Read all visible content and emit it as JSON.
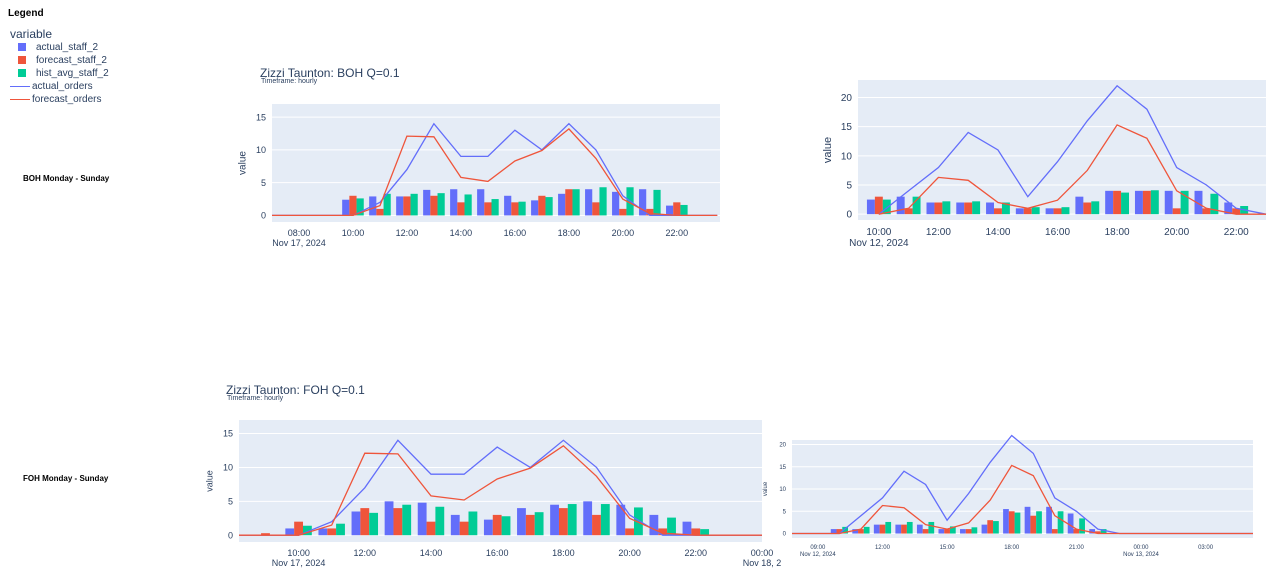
{
  "legend": {
    "heading": "Legend",
    "title": "variable",
    "items": [
      {
        "label": "actual_staff_2",
        "kind": "bar",
        "color": "#636efa"
      },
      {
        "label": "forecast_staff_2",
        "kind": "bar",
        "color": "#ef553b"
      },
      {
        "label": "hist_avg_staff_2",
        "kind": "bar",
        "color": "#00cc96"
      },
      {
        "label": "actual_orders",
        "kind": "line",
        "color": "#636efa"
      },
      {
        "label": "forecast_orders",
        "kind": "line",
        "color": "#ef553b"
      }
    ]
  },
  "rows": {
    "boh_label": "BOH Monday - Sunday",
    "foh_label": "FOH Monday - Sunday"
  },
  "colors": {
    "actual": "#636efa",
    "forecast": "#ef553b",
    "hist": "#00cc96",
    "plot_bg": "#e5ecf6",
    "grid": "#ffffff"
  },
  "chart_data": [
    {
      "id": "boh-main",
      "type": "bar",
      "title": "Zizzi Taunton: BOH Q=0.1",
      "subtitle": "Timeframe:  hourly",
      "ylabel": "value",
      "xlim": [
        7,
        23.6
      ],
      "ylim": [
        -1,
        17
      ],
      "yticks": [
        0,
        5,
        10,
        15
      ],
      "xticks": [
        {
          "x": 8,
          "label": "08:00",
          "sub": "Nov 17, 2024"
        },
        {
          "x": 10,
          "label": "10:00"
        },
        {
          "x": 12,
          "label": "12:00"
        },
        {
          "x": 14,
          "label": "14:00"
        },
        {
          "x": 16,
          "label": "16:00"
        },
        {
          "x": 18,
          "label": "18:00"
        },
        {
          "x": 20,
          "label": "20:00"
        },
        {
          "x": 22,
          "label": "22:00"
        }
      ],
      "categories": [
        10,
        11,
        12,
        13,
        14,
        15,
        16,
        17,
        18,
        19,
        20,
        21,
        22
      ],
      "series": [
        {
          "name": "actual_staff_2",
          "values": [
            2.4,
            2.9,
            2.9,
            3.9,
            4.0,
            4.0,
            3.0,
            2.3,
            3.3,
            4.0,
            3.6,
            4.0,
            1.5
          ]
        },
        {
          "name": "forecast_staff_2",
          "values": [
            3.0,
            1.0,
            2.9,
            3.0,
            2.0,
            2.0,
            2.0,
            3.0,
            4.0,
            2.0,
            1.0,
            1.0,
            2.0
          ]
        },
        {
          "name": "hist_avg_staff_2",
          "values": [
            2.6,
            3.3,
            3.3,
            3.4,
            3.2,
            2.5,
            2.1,
            2.8,
            4.0,
            4.3,
            4.3,
            3.9,
            1.6
          ]
        }
      ],
      "lines": [
        {
          "name": "actual_orders",
          "x": [
            7,
            10,
            11,
            12,
            13,
            14,
            15,
            16,
            17,
            18,
            19,
            20,
            21,
            22,
            23.5
          ],
          "y": [
            0,
            0,
            2,
            7,
            14,
            9,
            9,
            13,
            10,
            14,
            10,
            3,
            0,
            0,
            0
          ]
        },
        {
          "name": "forecast_orders",
          "x": [
            7,
            10,
            11,
            12,
            13,
            14,
            15,
            16,
            17,
            18,
            19,
            20,
            21,
            22,
            23.5
          ],
          "y": [
            0,
            0,
            1.5,
            12.1,
            12,
            5.8,
            5.2,
            8.3,
            9.9,
            13.2,
            8.7,
            2.5,
            0.3,
            0,
            0
          ]
        }
      ]
    },
    {
      "id": "boh-weekly",
      "type": "bar",
      "ylabel": "value",
      "xlim": [
        9.3,
        23
      ],
      "ylim": [
        -1,
        23
      ],
      "yticks": [
        0,
        5,
        10,
        15,
        20
      ],
      "xticks": [
        {
          "x": 10,
          "label": "10:00",
          "sub": "Nov 12, 2024"
        },
        {
          "x": 12,
          "label": "12:00"
        },
        {
          "x": 14,
          "label": "14:00"
        },
        {
          "x": 16,
          "label": "16:00"
        },
        {
          "x": 18,
          "label": "18:00"
        },
        {
          "x": 20,
          "label": "20:00"
        },
        {
          "x": 22,
          "label": "22:00"
        }
      ],
      "categories": [
        10,
        11,
        12,
        13,
        14,
        15,
        16,
        17,
        18,
        19,
        20,
        21,
        22
      ],
      "series": [
        {
          "name": "actual_staff_2",
          "values": [
            2.5,
            3.0,
            2.0,
            2.0,
            2.0,
            1.0,
            1.0,
            3.0,
            4.0,
            4.0,
            4.0,
            4.0,
            2.0
          ]
        },
        {
          "name": "forecast_staff_2",
          "values": [
            3.0,
            1.0,
            2.0,
            2.0,
            1.0,
            1.0,
            1.0,
            2.0,
            4.0,
            4.0,
            1.0,
            1.0,
            1.0
          ]
        },
        {
          "name": "hist_avg_staff_2",
          "values": [
            2.5,
            3.0,
            2.2,
            2.2,
            2.0,
            1.2,
            1.2,
            2.2,
            3.7,
            4.1,
            4.0,
            3.5,
            1.4
          ]
        }
      ],
      "lines": [
        {
          "name": "actual_orders",
          "x": [
            10,
            11,
            12,
            13,
            14,
            15,
            16,
            17,
            18,
            19,
            20,
            21,
            22,
            23
          ],
          "y": [
            0,
            4,
            8,
            14,
            11,
            3,
            9,
            16,
            22,
            18,
            8,
            5,
            1,
            0
          ]
        },
        {
          "name": "forecast_orders",
          "x": [
            10,
            11,
            12,
            13,
            14,
            15,
            16,
            17,
            18,
            19,
            20,
            21,
            22,
            23
          ],
          "y": [
            0,
            1,
            6.3,
            5.8,
            2,
            1,
            2.4,
            7.5,
            15.3,
            13,
            4,
            1,
            0,
            0
          ]
        }
      ]
    },
    {
      "id": "foh-main",
      "type": "bar",
      "title": "Zizzi Taunton: FOH Q=0.1",
      "subtitle": "Timeframe:  hourly",
      "ylabel": "value",
      "xlim": [
        8.2,
        24
      ],
      "ylim": [
        -1,
        17
      ],
      "yticks": [
        0,
        5,
        10,
        15
      ],
      "xticks": [
        {
          "x": 10,
          "label": "10:00",
          "sub": "Nov 17, 2024"
        },
        {
          "x": 12,
          "label": "12:00"
        },
        {
          "x": 14,
          "label": "14:00"
        },
        {
          "x": 16,
          "label": "16:00"
        },
        {
          "x": 18,
          "label": "18:00"
        },
        {
          "x": 20,
          "label": "20:00"
        },
        {
          "x": 22,
          "label": "22:00"
        },
        {
          "x": 24,
          "label": "00:00",
          "sub": "Nov 18, 2"
        }
      ],
      "categories": [
        9,
        10,
        11,
        12,
        13,
        14,
        15,
        16,
        17,
        18,
        19,
        20,
        21,
        22
      ],
      "series": [
        {
          "name": "actual_staff_2",
          "values": [
            0,
            1.0,
            1.0,
            3.5,
            5.0,
            4.8,
            3.0,
            2.3,
            4.0,
            4.5,
            5.0,
            4.5,
            3.0,
            2.0
          ]
        },
        {
          "name": "forecast_staff_2",
          "values": [
            0.3,
            2.0,
            1.0,
            4.0,
            4.0,
            2.0,
            2.0,
            3.0,
            3.0,
            4.0,
            3.0,
            1.0,
            1.0,
            1.0
          ]
        },
        {
          "name": "hist_avg_staff_2",
          "values": [
            0,
            1.4,
            1.7,
            3.3,
            4.5,
            4.2,
            3.5,
            2.8,
            3.4,
            4.6,
            4.6,
            4.1,
            2.6,
            0.9
          ]
        }
      ],
      "lines": [
        {
          "name": "actual_orders",
          "x": [
            8.2,
            10,
            11,
            12,
            13,
            14,
            15,
            16,
            17,
            18,
            19,
            20,
            21,
            22,
            24
          ],
          "y": [
            0,
            0,
            2,
            7,
            14,
            9,
            9,
            13,
            10,
            14,
            10,
            3,
            0,
            0,
            0
          ]
        },
        {
          "name": "forecast_orders",
          "x": [
            8.2,
            10,
            11,
            12,
            13,
            14,
            15,
            16,
            17,
            18,
            19,
            20,
            21,
            22,
            24
          ],
          "y": [
            0,
            0,
            1.5,
            12.1,
            12,
            5.8,
            5.2,
            8.3,
            9.9,
            13.2,
            8.7,
            2.5,
            0.3,
            0,
            0
          ]
        }
      ]
    },
    {
      "id": "foh-weekly",
      "type": "bar",
      "ylabel": "value",
      "xlim": [
        7.8,
        29.2
      ],
      "ylim": [
        -1,
        21
      ],
      "yticks": [
        0,
        5,
        10,
        15,
        20
      ],
      "xticks": [
        {
          "x": 9,
          "label": "09:00",
          "sub": "Nov 12, 2024"
        },
        {
          "x": 12,
          "label": "12:00"
        },
        {
          "x": 15,
          "label": "15:00"
        },
        {
          "x": 18,
          "label": "18:00"
        },
        {
          "x": 21,
          "label": "21:00"
        },
        {
          "x": 24,
          "label": "00:00",
          "sub": "Nov 13, 2024"
        },
        {
          "x": 27,
          "label": "03:00"
        }
      ],
      "categories": [
        10,
        11,
        12,
        13,
        14,
        15,
        16,
        17,
        18,
        19,
        20,
        21,
        22
      ],
      "series": [
        {
          "name": "actual_staff_2",
          "values": [
            1.0,
            1.0,
            2.0,
            2.0,
            2.0,
            1.0,
            1.0,
            2.0,
            5.5,
            6.0,
            6.0,
            4.5,
            1.0
          ]
        },
        {
          "name": "forecast_staff_2",
          "values": [
            1.0,
            1.0,
            2.0,
            2.0,
            1.0,
            1.0,
            1.0,
            3.0,
            5.0,
            4.0,
            1.0,
            1.0,
            0.5
          ]
        },
        {
          "name": "hist_avg_staff_2",
          "values": [
            1.5,
            1.5,
            2.6,
            2.6,
            2.6,
            1.6,
            1.4,
            2.8,
            4.7,
            5.0,
            5.0,
            3.4,
            1.0
          ]
        }
      ],
      "lines": [
        {
          "name": "actual_orders",
          "x": [
            7.8,
            10,
            11,
            12,
            13,
            14,
            15,
            16,
            17,
            18,
            19,
            20,
            21,
            22,
            23,
            29.2
          ],
          "y": [
            0,
            0,
            4,
            8,
            14,
            11,
            3,
            9,
            16,
            22,
            18,
            8,
            5,
            1,
            0,
            0
          ]
        },
        {
          "name": "forecast_orders",
          "x": [
            7.8,
            10,
            11,
            12,
            13,
            14,
            15,
            16,
            17,
            18,
            19,
            20,
            21,
            22,
            23,
            29.2
          ],
          "y": [
            0,
            0,
            1,
            6.3,
            5.8,
            2,
            1,
            2.4,
            7.5,
            15.3,
            13,
            4,
            1,
            0,
            0,
            0
          ]
        }
      ]
    }
  ]
}
